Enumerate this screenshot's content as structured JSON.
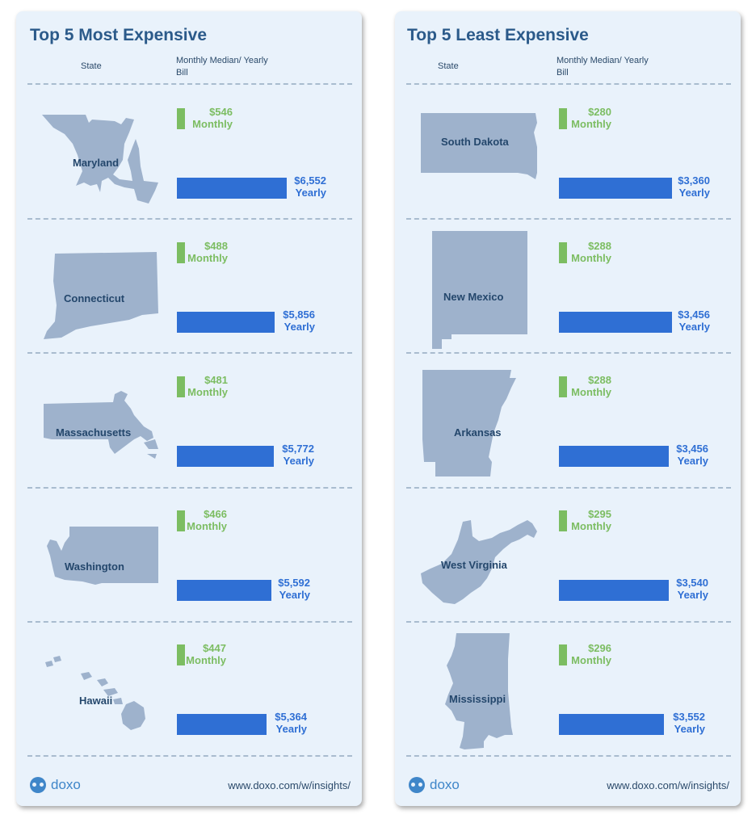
{
  "colors": {
    "monthly": "#7cbd62",
    "yearly": "#2f6fd4",
    "map": "#9eb2cc",
    "title": "#2b5a8a"
  },
  "panels": [
    {
      "title": "Top 5 Most Expensive",
      "header_state": "State",
      "header_bill": "Monthly Median/ Yearly Bill",
      "footer_logo": "doxo",
      "footer_url": "www.doxo.com/w/insights/",
      "rows": [
        {
          "state": "Maryland",
          "monthly_label": "$546",
          "monthly_word": "Monthly",
          "yearly_label": "$6,552",
          "yearly_word": "Yearly"
        },
        {
          "state": "Connecticut",
          "monthly_label": "$488",
          "monthly_word": "Monthly",
          "yearly_label": "$5,856",
          "yearly_word": "Yearly"
        },
        {
          "state": "Massachusetts",
          "monthly_label": "$481",
          "monthly_word": "Monthly",
          "yearly_label": "$5,772",
          "yearly_word": "Yearly"
        },
        {
          "state": "Washington",
          "monthly_label": "$466",
          "monthly_word": "Monthly",
          "yearly_label": "$5,592",
          "yearly_word": "Yearly"
        },
        {
          "state": "Hawaii",
          "monthly_label": "$447",
          "monthly_word": "Monthly",
          "yearly_label": "$5,364",
          "yearly_word": "Yearly"
        }
      ]
    },
    {
      "title": "Top 5 Least Expensive",
      "header_state": "State",
      "header_bill": "Monthly Median/ Yearly Bill",
      "footer_logo": "doxo",
      "footer_url": "www.doxo.com/w/insights/",
      "rows": [
        {
          "state": "South Dakota",
          "monthly_label": "$280",
          "monthly_word": "Monthly",
          "yearly_label": "$3,360",
          "yearly_word": "Yearly"
        },
        {
          "state": "New Mexico",
          "monthly_label": "$288",
          "monthly_word": "Monthly",
          "yearly_label": "$3,456",
          "yearly_word": "Yearly"
        },
        {
          "state": "Arkansas",
          "monthly_label": "$288",
          "monthly_word": "Monthly",
          "yearly_label": "$3,456",
          "yearly_word": "Yearly"
        },
        {
          "state": "West Virginia",
          "monthly_label": "$295",
          "monthly_word": "Monthly",
          "yearly_label": "$3,540",
          "yearly_word": "Yearly"
        },
        {
          "state": "Mississippi",
          "monthly_label": "$296",
          "monthly_word": "Monthly",
          "yearly_label": "$3,552",
          "yearly_word": "Yearly"
        }
      ]
    }
  ],
  "chart_data": [
    {
      "type": "bar",
      "title": "Top 5 Most Expensive",
      "categories": [
        "Maryland",
        "Connecticut",
        "Massachusetts",
        "Washington",
        "Hawaii"
      ],
      "series": [
        {
          "name": "Monthly",
          "values": [
            546,
            488,
            481,
            466,
            447
          ]
        },
        {
          "name": "Yearly",
          "values": [
            6552,
            5856,
            5772,
            5592,
            5364
          ]
        }
      ]
    },
    {
      "type": "bar",
      "title": "Top 5 Least Expensive",
      "categories": [
        "South Dakota",
        "New Mexico",
        "Arkansas",
        "West Virginia",
        "Mississippi"
      ],
      "series": [
        {
          "name": "Monthly",
          "values": [
            280,
            288,
            288,
            295,
            296
          ]
        },
        {
          "name": "Yearly",
          "values": [
            3360,
            3456,
            3456,
            3540,
            3552
          ]
        }
      ]
    }
  ]
}
